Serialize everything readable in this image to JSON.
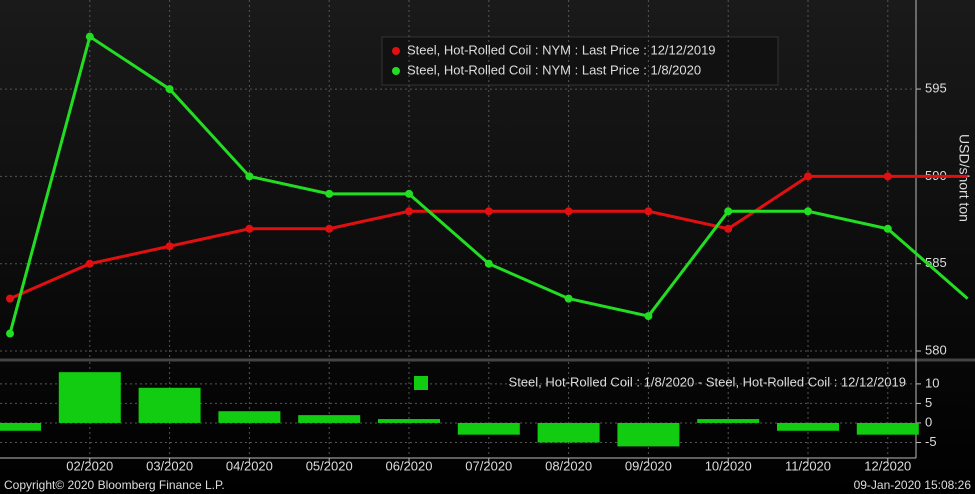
{
  "chart_data": [
    {
      "type": "line",
      "y_label": "USD/short ton",
      "series": [
        {
          "name": "Steel, Hot-Rolled Coil : NYM : Last Price : 12/12/2019",
          "color": "#e01010",
          "values": [
            583,
            585,
            586,
            587,
            587,
            588,
            588,
            588,
            588,
            587,
            590,
            590,
            590
          ]
        },
        {
          "name": "Steel, Hot-Rolled Coil : NYM : Last Price : 1/8/2020",
          "color": "#22dd22",
          "values": [
            581,
            598,
            595,
            590,
            589,
            589,
            585,
            583,
            582,
            588,
            588,
            587,
            583
          ]
        }
      ],
      "ylim": [
        579.6,
        600.1
      ],
      "yticks": [
        580,
        585,
        590,
        595
      ],
      "grid": true,
      "legend": "top-center"
    },
    {
      "type": "bar",
      "categories": [
        null,
        "02/2020",
        "03/2020",
        "04/2020",
        "05/2020",
        "06/2020",
        "07/2020",
        "08/2020",
        "09/2020",
        "10/2020",
        "11/2020",
        "12/2020",
        null
      ],
      "series": [
        {
          "name": "Steel, Hot-Rolled Coil : 1/8/2020 - Steel, Hot-Rolled Coil : 12/12/2019",
          "color": "#11cc11",
          "values": [
            -2,
            13,
            9,
            3,
            2,
            1,
            -3,
            -5,
            -6,
            1,
            -2,
            -3,
            null
          ]
        }
      ],
      "ylim": [
        -8.2,
        15.6
      ],
      "yticks": [
        -5,
        0,
        5,
        10
      ],
      "grid": true,
      "legend": "top-right"
    }
  ],
  "footer": {
    "copyright": "Copyright© 2020 Bloomberg Finance L.P.",
    "timestamp": "09-Jan-2020 15:08:26"
  }
}
